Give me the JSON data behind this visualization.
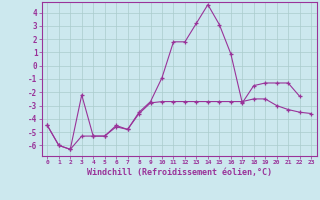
{
  "xlabel": "Windchill (Refroidissement éolien,°C)",
  "x": [
    0,
    1,
    2,
    3,
    4,
    5,
    6,
    7,
    8,
    9,
    10,
    11,
    12,
    13,
    14,
    15,
    16,
    17,
    18,
    19,
    20,
    21,
    22,
    23
  ],
  "line1_y": [
    -4.5,
    -6.0,
    -6.3,
    -5.3,
    -5.3,
    -5.3,
    -4.6,
    -4.8,
    -3.6,
    -2.8,
    -2.7,
    -2.7,
    -2.7,
    -2.7,
    -2.7,
    -2.7,
    -2.7,
    -2.7,
    -2.5,
    -2.5,
    -3.0,
    -3.3,
    -3.5,
    -3.6
  ],
  "line2_x": [
    0,
    1,
    2,
    3,
    4,
    5,
    6,
    7,
    8,
    9,
    10,
    11,
    12,
    13,
    14,
    15,
    16,
    17,
    18,
    19,
    20,
    21,
    22
  ],
  "line2_y": [
    -4.5,
    -6.0,
    -6.3,
    -2.2,
    -5.3,
    -5.3,
    -4.5,
    -4.8,
    -3.5,
    -2.7,
    -0.9,
    1.8,
    1.8,
    3.2,
    4.6,
    3.1,
    0.9,
    -2.8,
    -1.5,
    -1.3,
    -1.3,
    -1.3,
    -2.3
  ],
  "bg_color": "#cce8ee",
  "line_color": "#993399",
  "grid_color": "#aacccc",
  "ylim": [
    -6.8,
    4.8
  ],
  "xlim": [
    -0.5,
    23.5
  ],
  "yticks": [
    -6,
    -5,
    -4,
    -3,
    -2,
    -1,
    0,
    1,
    2,
    3,
    4
  ],
  "xticks": [
    0,
    1,
    2,
    3,
    4,
    5,
    6,
    7,
    8,
    9,
    10,
    11,
    12,
    13,
    14,
    15,
    16,
    17,
    18,
    19,
    20,
    21,
    22,
    23
  ]
}
